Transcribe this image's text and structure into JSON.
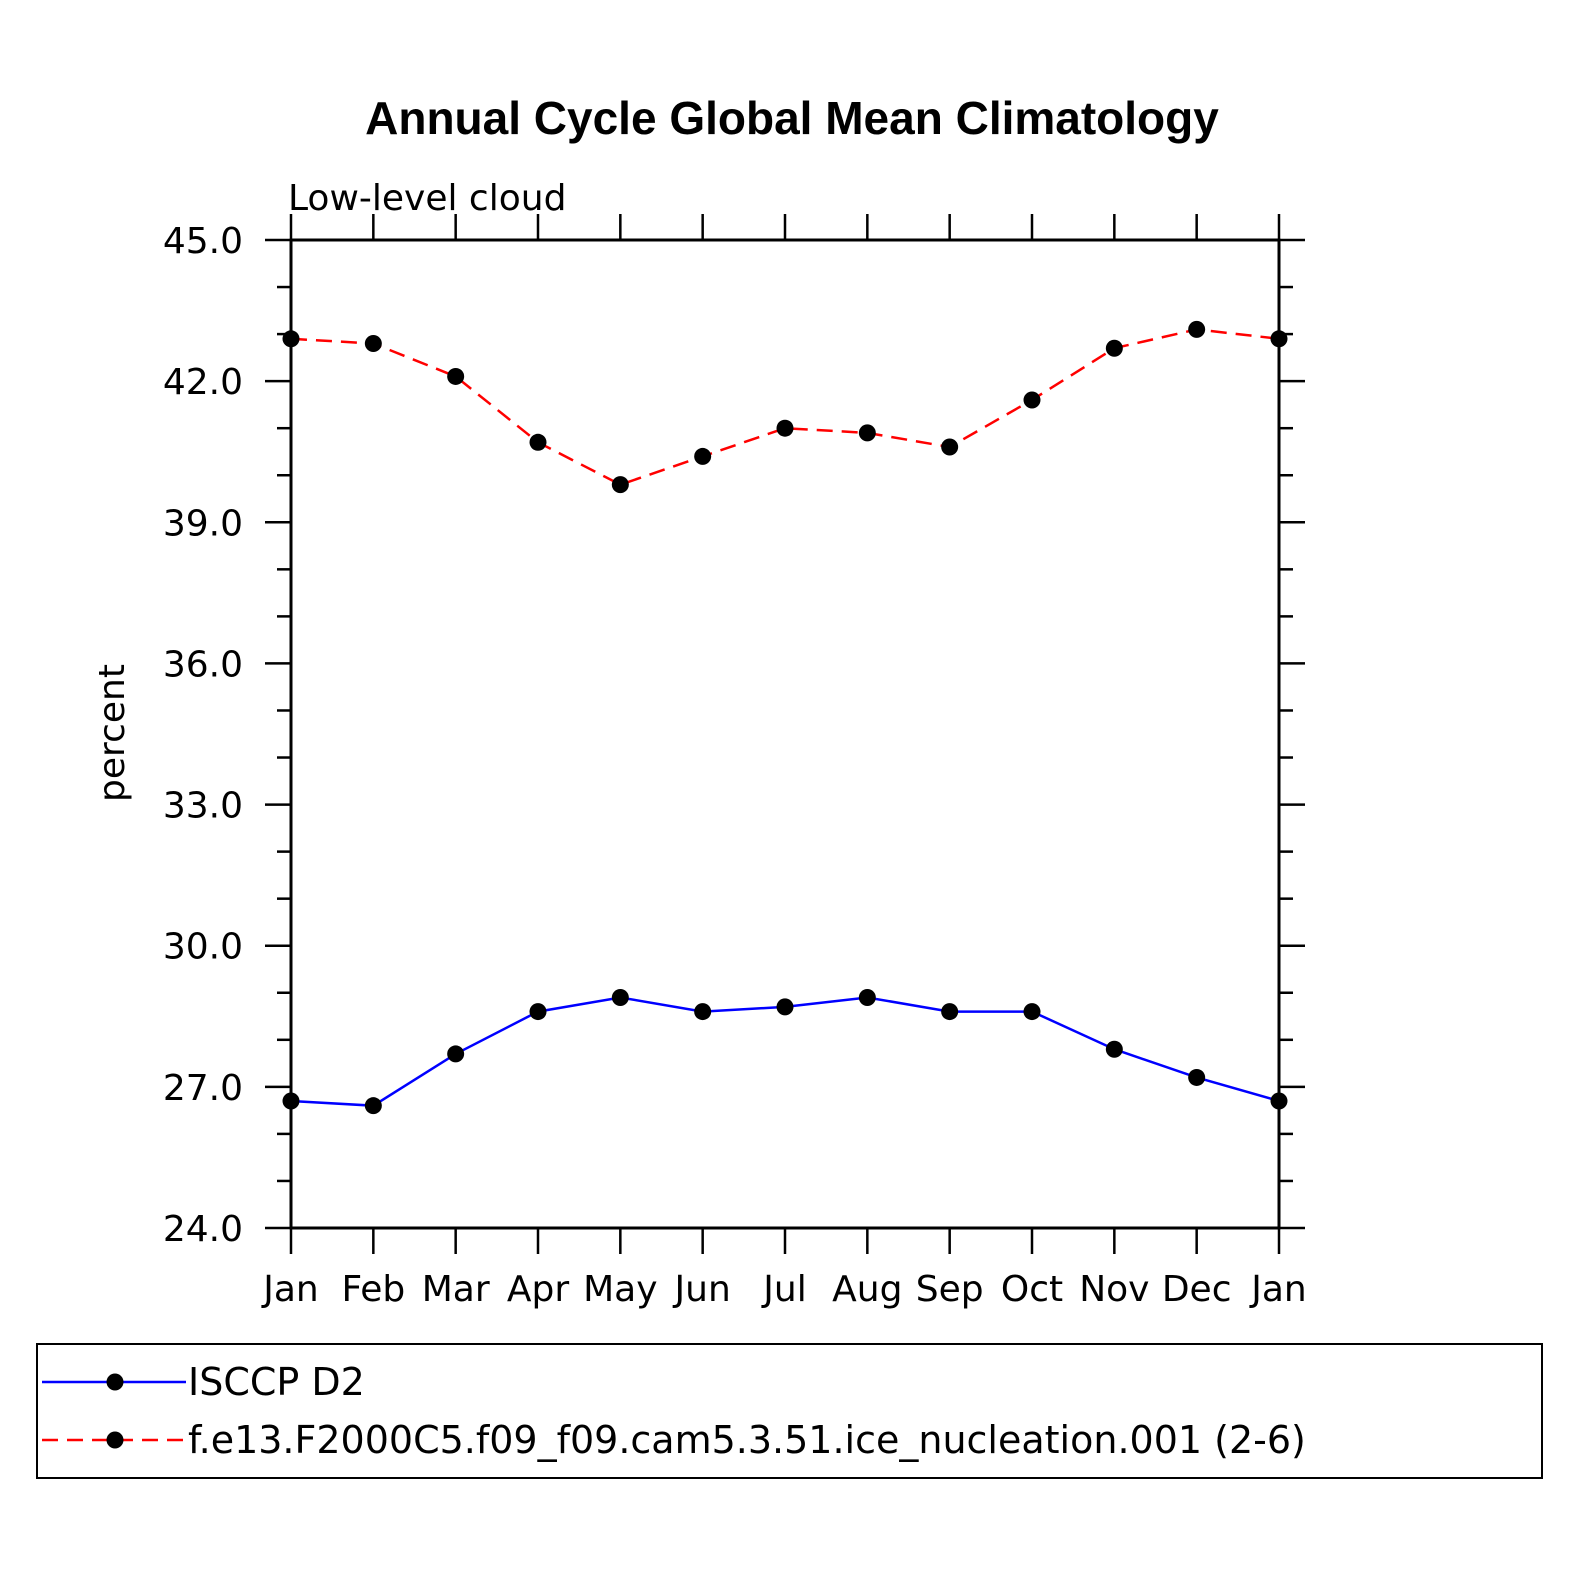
{
  "chart_data": {
    "type": "line",
    "title": "Annual Cycle Global Mean Climatology",
    "subtitle": "Low-level cloud",
    "xlabel": "",
    "ylabel": "percent",
    "categories": [
      "Jan",
      "Feb",
      "Mar",
      "Apr",
      "May",
      "Jun",
      "Jul",
      "Aug",
      "Sep",
      "Oct",
      "Nov",
      "Dec",
      "Jan"
    ],
    "ylim": [
      24.0,
      45.0
    ],
    "yticks": [
      "24.0",
      "27.0",
      "30.0",
      "33.0",
      "36.0",
      "39.0",
      "42.0",
      "45.0"
    ],
    "grid": false,
    "legend_position": "bottom",
    "series": [
      {
        "name": "ISCCP D2",
        "color": "#0000ff",
        "dash": "solid",
        "marker": "filled-circle",
        "values": [
          26.7,
          26.6,
          27.7,
          28.6,
          28.9,
          28.6,
          28.7,
          28.9,
          28.6,
          28.6,
          27.8,
          27.2,
          26.7
        ]
      },
      {
        "name": "f.e13.F2000C5.f09_f09.cam5.3.51.ice_nucleation.001 (2-6)",
        "color": "#ff0000",
        "dash": "dashed",
        "marker": "filled-circle",
        "values": [
          42.9,
          42.8,
          42.1,
          40.7,
          39.8,
          40.4,
          41.0,
          40.9,
          40.6,
          41.6,
          42.7,
          43.1,
          42.9
        ]
      }
    ]
  }
}
